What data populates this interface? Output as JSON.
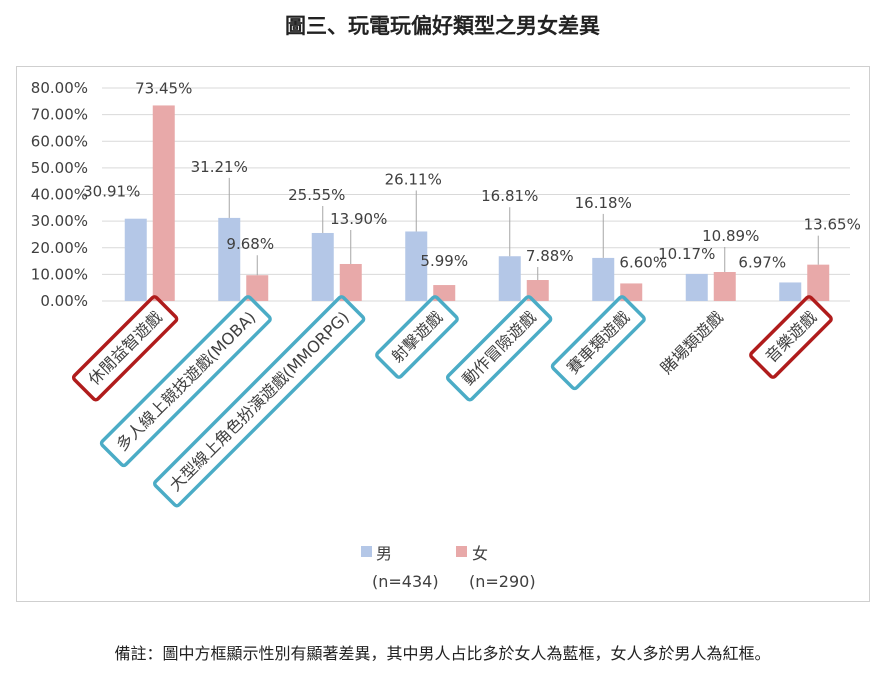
{
  "title": "圖三、玩電玩偏好類型之男女差異",
  "footnote": "備註：圖中方框顯示性別有顯著差異，其中男人占比多於女人為藍框，女人多於男人為紅框。",
  "colors": {
    "male": "#b4c7e7",
    "female": "#e8a9a9",
    "blue_box": "#4bacc6",
    "red_box": "#b01c1c",
    "grid": "#d9d9d9"
  },
  "legend": {
    "male": "男",
    "female": "女",
    "male_n": "(n=434)",
    "female_n": "(n=290)"
  },
  "chart_data": {
    "type": "bar",
    "title": "圖三、玩電玩偏好類型之男女差異",
    "xlabel": "",
    "ylabel": "",
    "ylim": [
      0,
      80
    ],
    "yticks": [
      "0.00%",
      "10.00%",
      "20.00%",
      "30.00%",
      "40.00%",
      "50.00%",
      "60.00%",
      "70.00%",
      "80.00%"
    ],
    "grid": true,
    "legend_position": "bottom",
    "categories": [
      "休閒益智遊戲",
      "多人線上競技遊戲(MOBA)",
      "大型線上角色扮演遊戲(MMORPG)",
      "射擊遊戲",
      "動作冒險遊戲",
      "賽車類遊戲",
      "賭場類遊戲",
      "音樂遊戲"
    ],
    "category_box": [
      "red",
      "blue",
      "blue",
      "blue",
      "blue",
      "blue",
      "none",
      "red"
    ],
    "series": [
      {
        "name": "男",
        "values": [
          30.91,
          31.21,
          25.55,
          26.11,
          16.81,
          16.18,
          10.17,
          6.97
        ],
        "labels": [
          "30.91%",
          "31.21%",
          "25.55%",
          "26.11%",
          "16.81%",
          "16.18%",
          "10.17%",
          "6.97%"
        ]
      },
      {
        "name": "女",
        "values": [
          73.45,
          9.68,
          13.9,
          5.99,
          7.88,
          6.6,
          10.89,
          13.65
        ],
        "labels": [
          "73.45%",
          "9.68%",
          "13.90%",
          "5.99%",
          "7.88%",
          "6.60%",
          "10.89%",
          "13.65%"
        ]
      }
    ]
  }
}
